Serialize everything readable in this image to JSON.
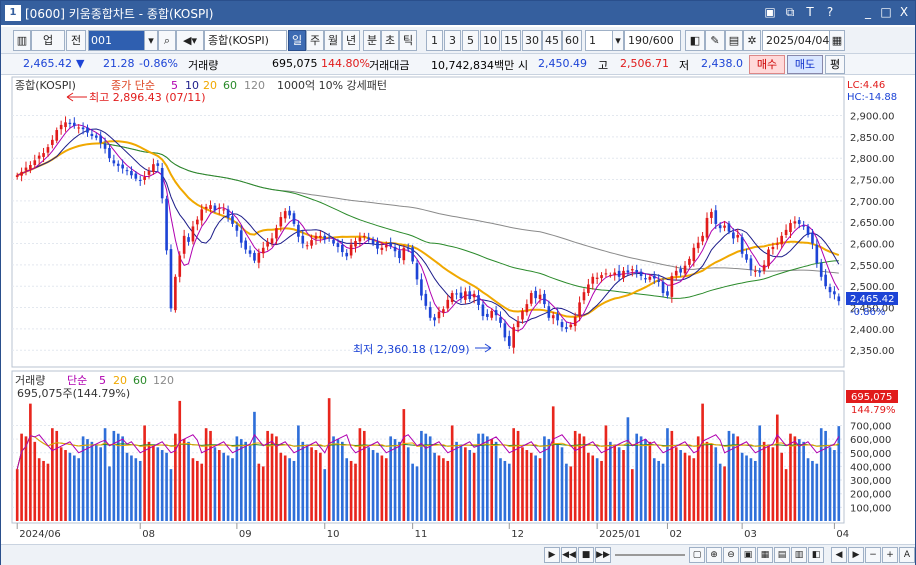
{
  "window": {
    "number": "1",
    "title": "[0600] 키움종합차트 - 종합(KOSPI)",
    "buttons": [
      "▣",
      "⧉",
      "T",
      "?",
      "_",
      "□",
      "X"
    ]
  },
  "toolbar": {
    "type_label": "업",
    "period_label": "전",
    "code": "001",
    "name": "종합(KOSPI)",
    "periods": [
      "일",
      "주",
      "월",
      "년",
      "분",
      "초",
      "틱"
    ],
    "minutes": [
      "1",
      "3",
      "5",
      "10",
      "15",
      "30",
      "45",
      "60"
    ],
    "interval_value": "1",
    "count": "190/600",
    "date": "2025/04/04"
  },
  "info": {
    "price": "2,465.42",
    "arrow": "▼",
    "change": "21.28",
    "change_pct": "-0.86%",
    "volume_label": "거래량",
    "volume": "695,075",
    "volume_pct": "144.80%",
    "amount_label": "거래대금",
    "amount": "10,742,834백만",
    "open_label": "시",
    "open": "2,450.49",
    "high_label": "고",
    "high": "2,506.71",
    "low_label": "저",
    "low": "2,438.0",
    "buy": "매수",
    "sell": "매도",
    "eval": "평"
  },
  "price_legend": {
    "name": "종합(KOSPI)",
    "ma_label": "종가 단순",
    "ma_list": [
      "5",
      "10",
      "20",
      "60",
      "120"
    ],
    "extra": "1000억 10% 강세패턴"
  },
  "volume_legend": {
    "name": "거래량",
    "ma_label": "단순",
    "ma_list": [
      "5",
      "20",
      "60",
      "120"
    ],
    "value": "695,075주(144.79%)"
  },
  "annotations": {
    "high": "최고 2,896.43 (07/11)",
    "low": "최저 2,360.18 (12/09)",
    "lc": "LC:4.46",
    "hc": "HC:-14.88",
    "last_price": "2,465.42",
    "last_pct": "-0.86%",
    "last_vol": "695,075",
    "last_vol_pct": "144.79%"
  },
  "colors": {
    "up": "#e11b1b",
    "down": "#1d44d6",
    "ma5": "#b000b0",
    "ma10": "#1d1d8a",
    "ma20": "#f0a800",
    "ma60": "#2a8a2a",
    "ma120": "#8a8a8a",
    "vol_up": "#e8261d",
    "vol_down": "#2f6fd9"
  },
  "chart_data": [
    {
      "type": "candlestick",
      "title": "종합(KOSPI)",
      "ylim": [
        2320,
        2920
      ],
      "yticks": [
        2350,
        2400,
        2450,
        2500,
        2550,
        2600,
        2650,
        2700,
        2750,
        2800,
        2850,
        2900
      ],
      "x_month_labels": [
        "2024/06",
        "08",
        "09",
        "10",
        "11",
        "12",
        "2025/01",
        "02",
        "03",
        "04"
      ],
      "close_estimate": [
        2760,
        2768,
        2778,
        2784,
        2795,
        2806,
        2812,
        2826,
        2843,
        2866,
        2878,
        2884,
        2880,
        2876,
        2872,
        2868,
        2860,
        2852,
        2848,
        2836,
        2822,
        2800,
        2788,
        2782,
        2776,
        2770,
        2760,
        2752,
        2748,
        2756,
        2770,
        2786,
        2782,
        2706,
        2584,
        2448,
        2522,
        2572,
        2618,
        2604,
        2640,
        2656,
        2680,
        2686,
        2690,
        2678,
        2684,
        2680,
        2660,
        2646,
        2630,
        2602,
        2586,
        2576,
        2560,
        2578,
        2590,
        2604,
        2612,
        2636,
        2662,
        2676,
        2666,
        2646,
        2616,
        2600,
        2596,
        2608,
        2618,
        2618,
        2610,
        2612,
        2600,
        2592,
        2580,
        2570,
        2598,
        2606,
        2614,
        2618,
        2610,
        2600,
        2588,
        2590,
        2596,
        2594,
        2582,
        2566,
        2590,
        2588,
        2558,
        2516,
        2478,
        2454,
        2426,
        2420,
        2440,
        2446,
        2468,
        2484,
        2482,
        2472,
        2488,
        2470,
        2482,
        2456,
        2430,
        2428,
        2442,
        2432,
        2414,
        2380,
        2360,
        2404,
        2418,
        2442,
        2458,
        2484,
        2472,
        2480,
        2458,
        2426,
        2432,
        2420,
        2404,
        2400,
        2410,
        2428,
        2462,
        2486,
        2504,
        2522,
        2520,
        2526,
        2530,
        2526,
        2532,
        2522,
        2536,
        2532,
        2540,
        2532,
        2524,
        2516,
        2522,
        2518,
        2510,
        2484,
        2478,
        2524,
        2536,
        2532,
        2548,
        2564,
        2590,
        2602,
        2618,
        2660,
        2674,
        2646,
        2636,
        2642,
        2628,
        2612,
        2620,
        2576,
        2562,
        2538,
        2536,
        2532,
        2550,
        2586,
        2592,
        2600,
        2618,
        2632,
        2648,
        2652,
        2646,
        2640,
        2620,
        2600,
        2554,
        2522,
        2500,
        2486,
        2481,
        2465
      ],
      "volume_ylim": [
        0,
        850000
      ],
      "volume_yticks": [
        100000,
        200000,
        300000,
        400000,
        500000,
        600000,
        700000
      ],
      "last_volume": 695075
    }
  ]
}
